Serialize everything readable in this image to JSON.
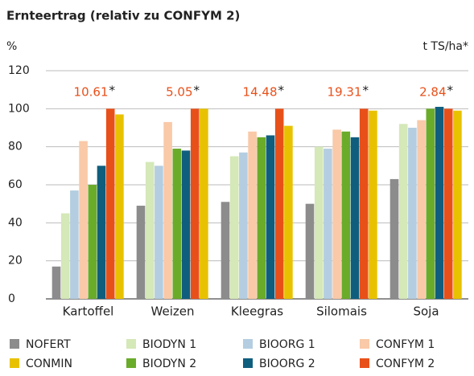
{
  "chart_data": {
    "type": "bar",
    "title": "Ernteertrag (relativ zu CONFYM 2)",
    "y_label": "%",
    "y2_label": "t TS/ha*",
    "categories": [
      "Kartoffel",
      "Weizen",
      "Kleegras",
      "Silomais",
      "Soja"
    ],
    "series": [
      {
        "name": "NOFERT",
        "color": "#8c8c8c",
        "values": [
          17,
          49,
          51,
          50,
          63
        ]
      },
      {
        "name": "BIODYN 1",
        "color": "#d5e8b8",
        "values": [
          45,
          72,
          75,
          80,
          92
        ]
      },
      {
        "name": "BIOORG 1",
        "color": "#b4cde0",
        "values": [
          57,
          70,
          77,
          79,
          90
        ]
      },
      {
        "name": "CONFYM 1",
        "color": "#f9c9a8",
        "values": [
          83,
          93,
          88,
          89,
          94
        ]
      },
      {
        "name": "BIODYN 2",
        "color": "#6aab2a",
        "values": [
          60,
          79,
          85,
          88,
          100
        ]
      },
      {
        "name": "BIOORG 2",
        "color": "#0f5e7e",
        "values": [
          70,
          78,
          86,
          85,
          101
        ]
      },
      {
        "name": "CONFYM 2",
        "color": "#e8501a",
        "values": [
          100,
          100,
          100,
          100,
          100
        ]
      },
      {
        "name": "CONMIN",
        "color": "#e8c200",
        "values": [
          97,
          100,
          91,
          99,
          99
        ]
      }
    ],
    "reference_yields": [
      10.61,
      5.05,
      14.48,
      19.31,
      2.84
    ],
    "reference_yield_color": "#e8501a",
    "reference_yield_marker": "*",
    "ylim": [
      0,
      120
    ],
    "yticks": [
      0,
      20,
      40,
      60,
      80,
      100,
      120
    ],
    "grid": true
  }
}
